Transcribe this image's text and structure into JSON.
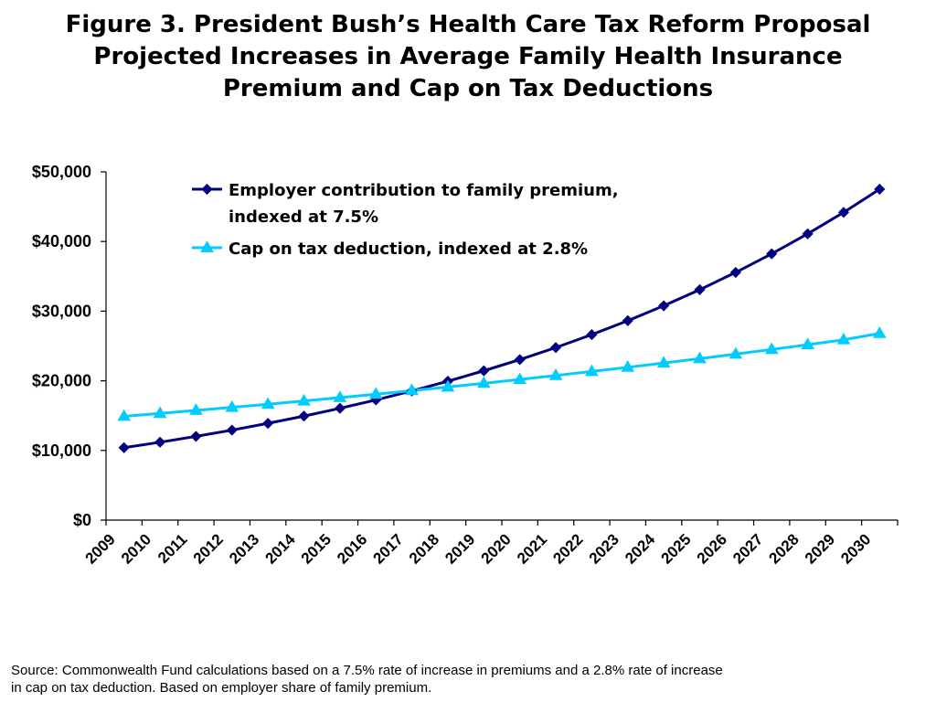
{
  "title": {
    "line1": "Figure 3. President Bush’s Health Care Tax Reform Proposal",
    "line2": "Projected Increases in Average Family Health Insurance",
    "line3": "Premium and Cap on Tax Deductions"
  },
  "source": {
    "line1": "Source: Commonwealth Fund calculations based on a 7.5% rate of increase in premiums and a 2.8% rate of increase",
    "line2": "in cap on tax deduction. Based on employer share of family premium."
  },
  "chart_data": {
    "type": "line",
    "title": "Figure 3. President Bush’s Health Care Tax Reform Proposal Projected Increases in Average Family Health Insurance Premium and Cap on Tax Deductions",
    "xlabel": "",
    "ylabel": "",
    "x": [
      "2009",
      "2010",
      "2011",
      "2012",
      "2013",
      "2014",
      "2015",
      "2016",
      "2017",
      "2018",
      "2019",
      "2020",
      "2021",
      "2022",
      "2023",
      "2024",
      "2025",
      "2026",
      "2027",
      "2028",
      "2029",
      "2030"
    ],
    "ylim": [
      0,
      50000
    ],
    "yticks": [
      "$0",
      "$10,000",
      "$20,000",
      "$30,000",
      "$40,000",
      "$50,000"
    ],
    "ytick_values": [
      0,
      10000,
      20000,
      30000,
      40000,
      50000
    ],
    "grid": false,
    "legend_position": "top-center",
    "series": [
      {
        "name_line1": "Employer contribution to family premium,",
        "name_line2": "indexed at 7.5%",
        "color": "#000080",
        "marker": "diamond",
        "values": [
          10400,
          11180,
          12020,
          12920,
          13890,
          14930,
          16050,
          17250,
          18550,
          19940,
          21440,
          23040,
          24770,
          26630,
          28630,
          30770,
          33080,
          35560,
          38230,
          41100,
          44180,
          47500
        ]
      },
      {
        "name_line1": "Cap on tax deduction, indexed at 2.8%",
        "color": "#00CCFF",
        "marker": "triangle",
        "values": [
          14900,
          15320,
          15750,
          16190,
          16640,
          17110,
          17590,
          18080,
          18590,
          19110,
          19640,
          20190,
          20760,
          21340,
          21940,
          22550,
          23180,
          23830,
          24500,
          25180,
          25890,
          26800
        ]
      }
    ]
  }
}
